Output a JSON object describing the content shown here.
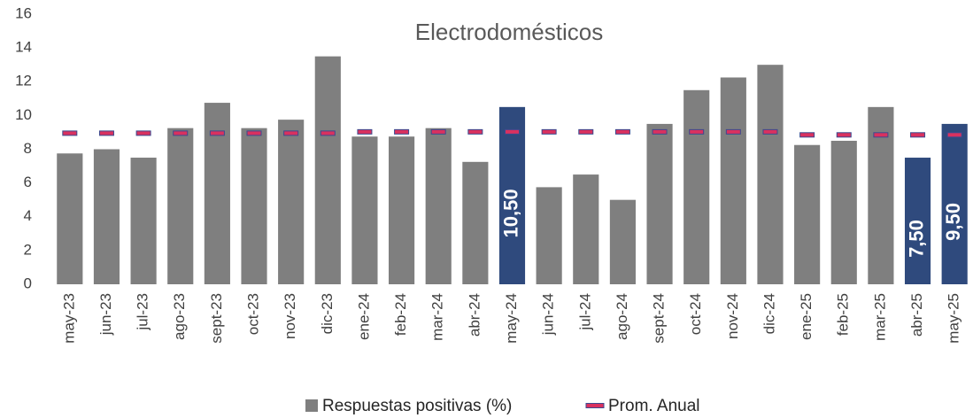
{
  "chart_data": {
    "type": "bar",
    "title": "Electrodomésticos",
    "categories": [
      "may-23",
      "jun-23",
      "jul-23",
      "ago-23",
      "sept-23",
      "oct-23",
      "nov-23",
      "dic-23",
      "ene-24",
      "feb-24",
      "mar-24",
      "abr-24",
      "may-24",
      "jun-24",
      "jul-24",
      "ago-24",
      "sept-24",
      "oct-24",
      "nov-24",
      "dic-24",
      "ene-25",
      "feb-25",
      "mar-25",
      "abr-25",
      "may-25"
    ],
    "series": [
      {
        "name": "Respuestas positivas (%)",
        "type": "bar",
        "color": "#7f7f7f",
        "colors": [
          "#7f7f7f",
          "#7f7f7f",
          "#7f7f7f",
          "#7f7f7f",
          "#7f7f7f",
          "#7f7f7f",
          "#7f7f7f",
          "#7f7f7f",
          "#7f7f7f",
          "#7f7f7f",
          "#7f7f7f",
          "#7f7f7f",
          "#2f4a7d",
          "#7f7f7f",
          "#7f7f7f",
          "#7f7f7f",
          "#7f7f7f",
          "#7f7f7f",
          "#7f7f7f",
          "#7f7f7f",
          "#7f7f7f",
          "#7f7f7f",
          "#7f7f7f",
          "#2f4a7d",
          "#2f4a7d"
        ],
        "values": [
          7.75,
          8.0,
          7.5,
          9.25,
          10.75,
          9.25,
          9.75,
          13.5,
          8.75,
          8.75,
          9.25,
          7.25,
          10.5,
          5.75,
          6.5,
          5.0,
          9.5,
          11.5,
          12.25,
          13.0,
          8.25,
          8.5,
          10.5,
          7.5,
          9.5
        ],
        "value_labels": [
          null,
          null,
          null,
          null,
          null,
          null,
          null,
          null,
          null,
          null,
          null,
          null,
          "10,50",
          null,
          null,
          null,
          null,
          null,
          null,
          null,
          null,
          null,
          null,
          "7,50",
          "9,50"
        ]
      },
      {
        "name": "Prom. Anual",
        "type": "marker",
        "color": "#d9315f",
        "values": [
          8.95,
          8.95,
          8.95,
          8.95,
          8.95,
          8.95,
          8.95,
          8.95,
          9.03,
          9.03,
          9.03,
          9.03,
          9.03,
          9.03,
          9.03,
          9.03,
          9.03,
          9.03,
          9.03,
          9.03,
          8.85,
          8.85,
          8.85,
          8.85,
          8.85
        ]
      }
    ],
    "ylim": [
      0,
      16
    ],
    "yticks": [
      0,
      2,
      4,
      6,
      8,
      10,
      12,
      14,
      16
    ],
    "grid": false
  }
}
